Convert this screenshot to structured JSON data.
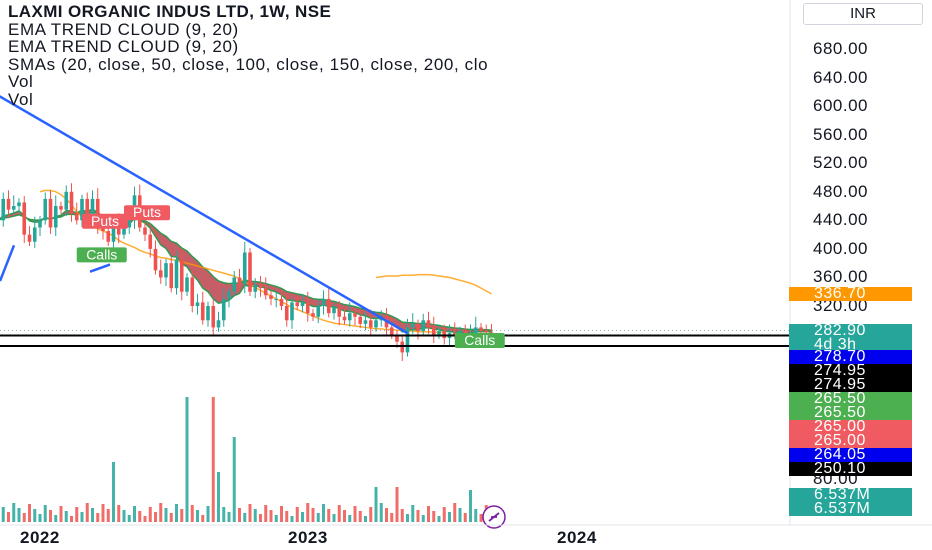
{
  "legend": {
    "title": "LAXMI ORGANIC INDUS LTD, 1W, NSE",
    "line1": "EMA TREND CLOUD (9, 20)",
    "line2": "EMA TREND CLOUD (9, 20)",
    "line3": "SMAs (20, close, 50, close, 100, close, 150, close, 200, clo",
    "line4": "Vol",
    "line5": "Vol"
  },
  "currency": "INR",
  "colors": {
    "up": "#26a69a",
    "down": "#ef5350",
    "trendline": "#2962ff",
    "sma": "#ff9800",
    "cloud_bear": "#b22833",
    "cloud_bull": "#2e9a4e",
    "calls": "#4caf50",
    "puts": "#f05a61"
  },
  "chart_data": {
    "type": "candlestick",
    "symbol": "LAXMI ORGANIC INDUS LTD",
    "interval": "1W",
    "exchange": "NSE",
    "y_ticks": [
      "680.00",
      "640.00",
      "600.00",
      "560.00",
      "520.00",
      "480.00",
      "440.00",
      "400.00",
      "360.00",
      "320.00"
    ],
    "y_range": [
      180,
      700
    ],
    "x_ticks": [
      "2022",
      "2023",
      "2024"
    ],
    "volume_tick": "80.00",
    "price_labels": [
      {
        "text": "336.70",
        "color": "#ff9800",
        "value": 336.7
      },
      {
        "text": "282.90",
        "color": "#26a69a",
        "value": 282.9
      },
      {
        "text": "4d 3h",
        "color": "#26a69a",
        "value": 282.9
      },
      {
        "text": "278.70",
        "color": "#0000ee",
        "value": 278.7
      },
      {
        "text": "274.95",
        "color": "#000000",
        "value": 274.95
      },
      {
        "text": "274.95",
        "color": "#000000",
        "value": 274.95
      },
      {
        "text": "265.50",
        "color": "#4caf50",
        "value": 265.5
      },
      {
        "text": "265.50",
        "color": "#4caf50",
        "value": 265.5
      },
      {
        "text": "265.00",
        "color": "#f05a61",
        "value": 265.0
      },
      {
        "text": "265.00",
        "color": "#f05a61",
        "value": 265.0
      },
      {
        "text": "264.05",
        "color": "#0000ee",
        "value": 264.05
      },
      {
        "text": "250.10",
        "color": "#000000",
        "value": 250.1
      }
    ],
    "volume_labels": [
      {
        "text": "6.537M",
        "color": "#26a69a"
      },
      {
        "text": "6.537M",
        "color": "#26a69a"
      }
    ],
    "horizontal_levels": [
      278.7,
      264.05
    ],
    "annotations": [
      "Puts",
      "Puts",
      "Calls",
      "Calls"
    ],
    "trendline": {
      "from": {
        "week": 0,
        "price": 615
      },
      "to": {
        "week": 78,
        "price": 282
      }
    },
    "closes": [
      440,
      470,
      455,
      460,
      465,
      420,
      410,
      430,
      440,
      470,
      430,
      460,
      455,
      480,
      450,
      440,
      470,
      445,
      470,
      430,
      425,
      410,
      435,
      420,
      430,
      440,
      475,
      430,
      420,
      400,
      370,
      360,
      380,
      345,
      385,
      340,
      360,
      320,
      325,
      300,
      320,
      290,
      300,
      330,
      340,
      360,
      350,
      395,
      340,
      350,
      345,
      335,
      330,
      330,
      320,
      300,
      325,
      320,
      325,
      310,
      305,
      320,
      330,
      310,
      318,
      305,
      300,
      310,
      305,
      295,
      300,
      290,
      300,
      305,
      290,
      280,
      270,
      255,
      290,
      295,
      285,
      300,
      290,
      280,
      285,
      275,
      282,
      280,
      285,
      278,
      282,
      290,
      285,
      283,
      282.9
    ],
    "sma_line": [
      null,
      null,
      null,
      null,
      null,
      null,
      null,
      null,
      480,
      482,
      482,
      480,
      476,
      470,
      462,
      452,
      445,
      440,
      434,
      428,
      425,
      422,
      418,
      412,
      408,
      405,
      402,
      398,
      395,
      393,
      390,
      388,
      387,
      385,
      384,
      382,
      380,
      378,
      376,
      374,
      372,
      370,
      368,
      366,
      364,
      362,
      358,
      354,
      350,
      346,
      342,
      338,
      334,
      330,
      326,
      322,
      318,
      315,
      312,
      309,
      306,
      303,
      300,
      298,
      296,
      295,
      294,
      293,
      292,
      291,
      290,
      289,
      288,
      288,
      287,
      287,
      286,
      286,
      285,
      285,
      284,
      284,
      284,
      283,
      283,
      283
    ],
    "sma_long": [
      null,
      null,
      null,
      null,
      null,
      null,
      null,
      null,
      null,
      null,
      null,
      null,
      null,
      null,
      null,
      null,
      null,
      null,
      null,
      null,
      null,
      null,
      null,
      null,
      null,
      null,
      null,
      null,
      null,
      null,
      null,
      null,
      null,
      null,
      null,
      null,
      null,
      null,
      null,
      null,
      null,
      null,
      null,
      null,
      null,
      null,
      null,
      null,
      null,
      null,
      null,
      null,
      null,
      null,
      null,
      null,
      null,
      null,
      null,
      null,
      null,
      null,
      null,
      null,
      null,
      null,
      null,
      null,
      null,
      null,
      null,
      null,
      360,
      361,
      362,
      362,
      362,
      363,
      363,
      363,
      364,
      364,
      364,
      363,
      362,
      361,
      360,
      358,
      356,
      354,
      352,
      349,
      345,
      341,
      337
    ]
  }
}
